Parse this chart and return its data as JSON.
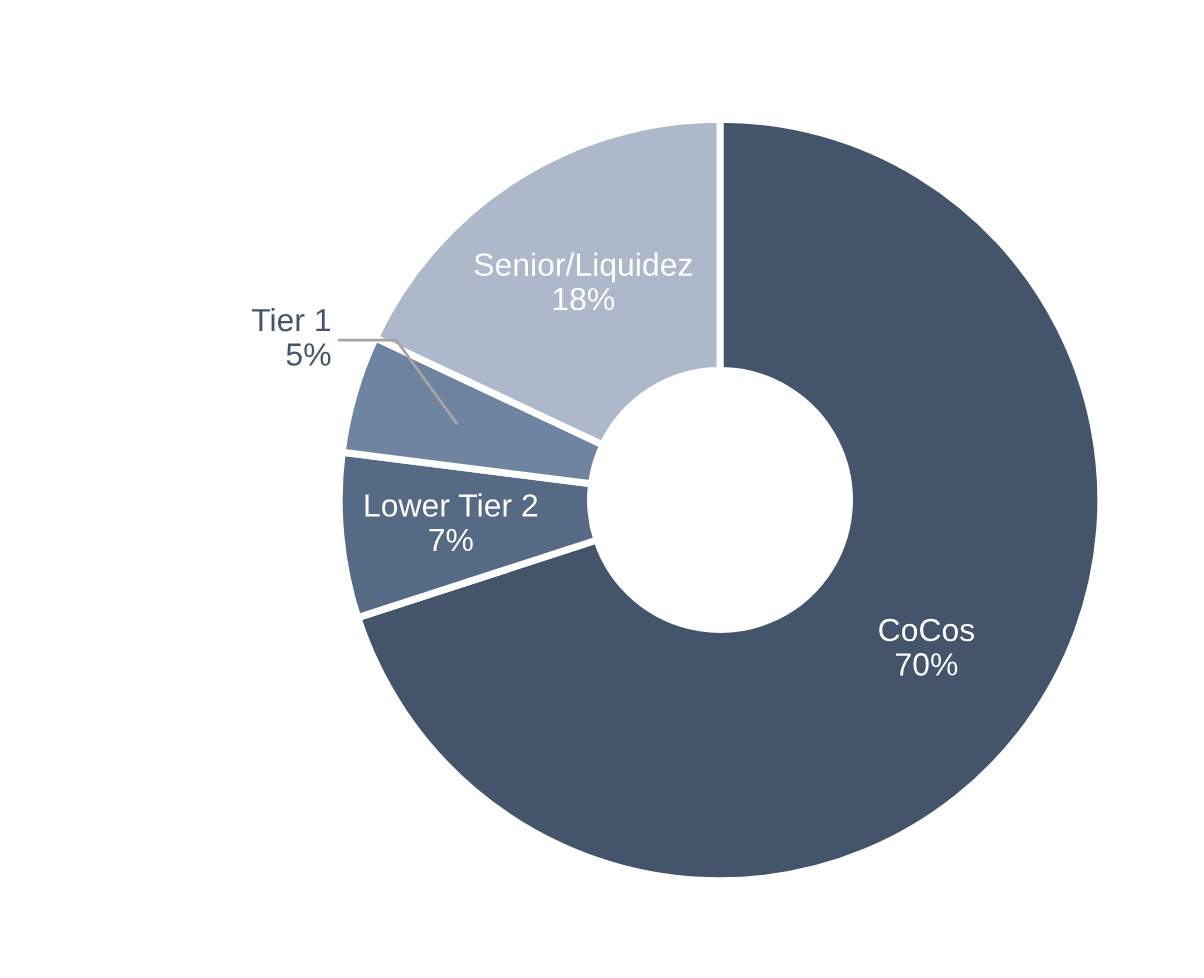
{
  "chart_data": {
    "type": "donut",
    "categories": [
      "CoCos",
      "Lower Tier 2",
      "Tier 1",
      "Senior/Liquidez"
    ],
    "values": [
      70,
      7,
      5,
      18
    ],
    "colors": [
      "#44546a",
      "#566a86",
      "#6f84a0",
      "#adb9cb"
    ],
    "value_labels": [
      "70%",
      "7%",
      "5%",
      "18%"
    ]
  }
}
